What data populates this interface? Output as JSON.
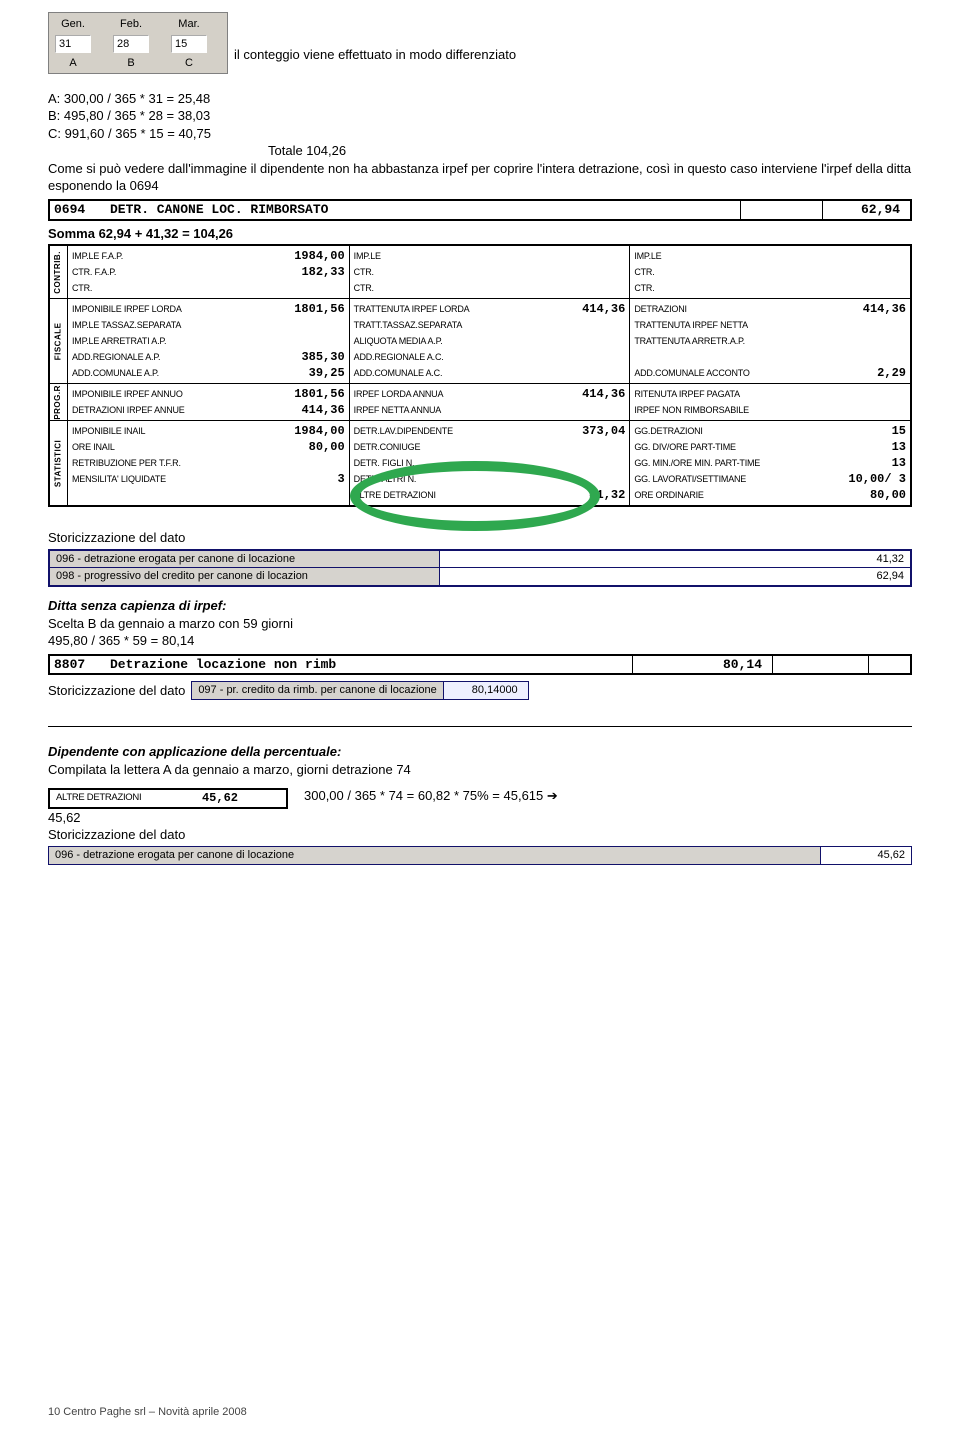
{
  "months": {
    "headers": [
      "Gen.",
      "Feb.",
      "Mar."
    ],
    "values": [
      "31",
      "28",
      "15"
    ],
    "letters": [
      "A",
      "B",
      "C"
    ]
  },
  "intro": "il conteggio viene effettuato in modo differenziato",
  "calcA": "A: 300,00 / 365 * 31 = 25,48",
  "calcB": "B: 495,80 / 365 * 28 = 38,03",
  "calcC": "C: 991,60 / 365 * 15 = 40,75",
  "totale_lbl": "Totale 104,26",
  "para2": "Come si può vedere dall'immagine il dipendente non ha abbastanza irpef per coprire l'intera detrazione, così in questo caso interviene l'irpef della ditta esponendo la 0694",
  "detr_row": {
    "code": "0694",
    "desc": "DETR. CANONE LOC. RIMBORSATO",
    "val": "62,94"
  },
  "somma": "Somma 62,94 + 41,32 = 104,26",
  "payroll": {
    "contrib": {
      "left": [
        {
          "lab": "IMP.LE F.A.P.",
          "val": "1984,00"
        },
        {
          "lab": "CTR.   F.A.P.",
          "val": "182,33"
        },
        {
          "lab": "CTR.",
          "val": ""
        }
      ],
      "mid": [
        {
          "lab": "IMP.LE",
          "val": ""
        },
        {
          "lab": "CTR.",
          "val": ""
        },
        {
          "lab": "CTR.",
          "val": ""
        }
      ],
      "right": [
        {
          "lab": "IMP.LE",
          "val": ""
        },
        {
          "lab": "CTR.",
          "val": ""
        },
        {
          "lab": "CTR.",
          "val": ""
        }
      ]
    },
    "fiscale": {
      "left": [
        {
          "lab": "IMPONIBILE IRPEF LORDA",
          "val": "1801,56"
        },
        {
          "lab": "IMP.LE TASSAZ.SEPARATA",
          "val": ""
        },
        {
          "lab": "IMP.LE ARRETRATI A.P.",
          "val": ""
        },
        {
          "lab": "ADD.REGIONALE A.P.",
          "val": "385,30"
        },
        {
          "lab": "ADD.COMUNALE A.P.",
          "val": "39,25"
        }
      ],
      "mid": [
        {
          "lab": "TRATTENUTA IRPEF LORDA",
          "val": "414,36"
        },
        {
          "lab": "TRATT.TASSAZ.SEPARATA",
          "val": ""
        },
        {
          "lab": "ALIQUOTA MEDIA A.P.",
          "val": ""
        },
        {
          "lab": "ADD.REGIONALE A.C.",
          "val": ""
        },
        {
          "lab": "ADD.COMUNALE A.C.",
          "val": ""
        }
      ],
      "right": [
        {
          "lab": "DETRAZIONI",
          "val": "414,36"
        },
        {
          "lab": "TRATTENUTA IRPEF NETTA",
          "val": ""
        },
        {
          "lab": "TRATTENUTA ARRETR.A.P.",
          "val": ""
        },
        {
          "lab": "",
          "val": ""
        },
        {
          "lab": "ADD.COMUNALE ACCONTO",
          "val": "2,29"
        }
      ]
    },
    "progr": {
      "left": [
        {
          "lab": "IMPONIBILE IRPEF ANNUO",
          "val": "1801,56"
        },
        {
          "lab": "DETRAZIONI IRPEF ANNUE",
          "val": "414,36"
        }
      ],
      "mid": [
        {
          "lab": "IRPEF LORDA ANNUA",
          "val": "414,36"
        },
        {
          "lab": "IRPEF NETTA ANNUA",
          "val": ""
        }
      ],
      "right": [
        {
          "lab": "RITENUTA IRPEF PAGATA",
          "val": ""
        },
        {
          "lab": "IRPEF NON RIMBORSABILE",
          "val": ""
        }
      ]
    },
    "stat": {
      "left": [
        {
          "lab": "IMPONIBILE INAIL",
          "val": "1984,00"
        },
        {
          "lab": "ORE INAIL",
          "val": "80,00"
        },
        {
          "lab": "RETRIBUZIONE PER T.F.R.",
          "val": ""
        },
        {
          "lab": "MENSILITA' LIQUIDATE",
          "val": "3"
        },
        {
          "lab": "",
          "val": ""
        }
      ],
      "mid": [
        {
          "lab": "DETR.LAV.DIPENDENTE",
          "val": "373,04"
        },
        {
          "lab": "DETR.CONIUGE",
          "val": ""
        },
        {
          "lab": "DETR. FIGLI    N.",
          "val": ""
        },
        {
          "lab": "DETR. ALTRI    N.",
          "val": ""
        },
        {
          "lab": "ALTRE DETRAZIONI",
          "val": "41,32"
        }
      ],
      "right": [
        {
          "lab": "GG.DETRAZIONI",
          "val": "15"
        },
        {
          "lab": "GG. DIV/ORE PART-TIME",
          "val": "13"
        },
        {
          "lab": "GG. MIN./ORE MIN. PART-TIME",
          "val": "13"
        },
        {
          "lab": "GG. LAVORATI/SETTIMANE",
          "val": "10,00/ 3"
        },
        {
          "lab": "ORE ORDINARIE",
          "val": "80,00"
        }
      ]
    }
  },
  "storic_lbl": "Storicizzazione del dato",
  "storic1": [
    {
      "desc": "096 - detrazione erogata per canone di locazione",
      "val": "41,32"
    },
    {
      "desc": "098 - progressivo del credito per canone di locazion",
      "val": "62,94"
    }
  ],
  "ditta_title": "Ditta senza capienza di irpef:",
  "scelta_b": "Scelta B da gennaio a marzo con 59 giorni",
  "calc_b2": "495,80 / 365 * 59 = 80,14",
  "row8807": {
    "code": "8807",
    "desc": "Detrazione locazione non rimb",
    "val": "80,14"
  },
  "storic2_desc": "097 - pr. credito da rimb. per canone di locazione",
  "storic2_val": "80,14000",
  "dipendente_title": "Dipendente con applicazione della percentuale:",
  "compilata": "Compilata la lettera A da gennaio a marzo, giorni detrazione 74",
  "altre_lbl": "ALTRE DETRAZIONI",
  "altre_val": "45,62",
  "calc_dip": "300,00 / 365 * 74 = 60,82 * 75% = 45,615 ➔",
  "res45": "45,62",
  "storic3_desc": "096 - detrazione erogata per canone di locazione",
  "storic3_val": "45,62",
  "footer": "10   Centro Paghe srl – Novità aprile 2008"
}
